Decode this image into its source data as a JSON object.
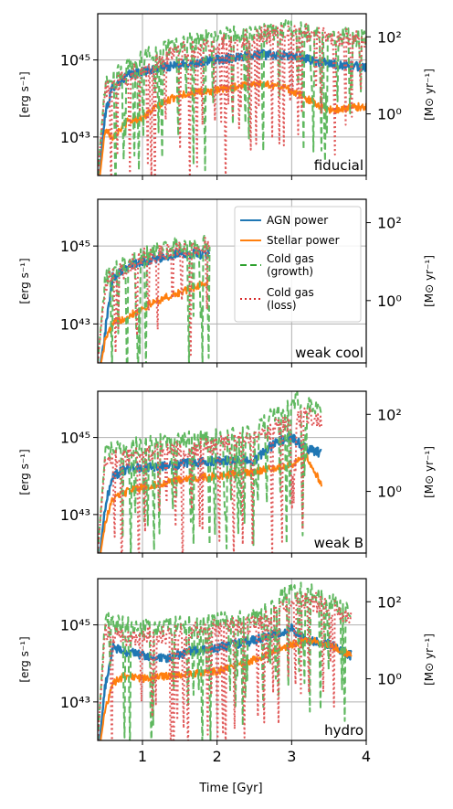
{
  "figure": {
    "xlabel": "Time [Gyr]",
    "x_ticks": [
      "1",
      "2",
      "3",
      "4"
    ],
    "left_ylabel": "[erg s⁻¹]",
    "right_ylabel": "[M⊙ yr⁻¹]",
    "left_ticks": [
      "10⁴⁵",
      "10⁴³"
    ],
    "right_ticks": [
      "10²",
      "10⁰"
    ]
  },
  "legend": {
    "panel": "weak cool",
    "entries": [
      {
        "label": "AGN power",
        "color": "#1f77b4",
        "style": "solid"
      },
      {
        "label": "Stellar power",
        "color": "#ff7f0e",
        "style": "solid"
      },
      {
        "label": "Cold gas\n(growth)",
        "color": "#2ca02c",
        "style": "dashed"
      },
      {
        "label": "Cold gas\n(loss)",
        "color": "#d62728",
        "style": "dotted"
      }
    ]
  },
  "colors": {
    "agn": "#1f77b4",
    "stellar": "#ff7f0e",
    "growth": "#5fb85f",
    "loss": "#e05858",
    "grid": "#b0b0b0"
  },
  "chart_data": [
    {
      "type": "line",
      "label": "fiducial",
      "t_end": 4.0,
      "x": [
        0.4,
        4.0
      ],
      "xlim": [
        0.4,
        4.0
      ],
      "left_ylim_log10": [
        42.0,
        46.2
      ],
      "right_ylim_log10": [
        -1.6,
        2.6
      ],
      "log_scale": true,
      "grid": true,
      "series": [
        {
          "name": "AGN power",
          "log10_values_anchors": [
            [
              0.4,
              41.5
            ],
            [
              0.5,
              43.6
            ],
            [
              0.6,
              44.3
            ],
            [
              0.8,
              44.6
            ],
            [
              1.0,
              44.7
            ],
            [
              1.3,
              44.8
            ],
            [
              1.6,
              44.9
            ],
            [
              2.0,
              45.0
            ],
            [
              2.5,
              45.15
            ],
            [
              3.0,
              45.1
            ],
            [
              3.5,
              44.9
            ],
            [
              4.0,
              44.8
            ]
          ]
        },
        {
          "name": "Stellar power",
          "log10_values_anchors": [
            [
              0.4,
              41.5
            ],
            [
              0.5,
              43.2
            ],
            [
              0.6,
              43.0
            ],
            [
              0.8,
              43.4
            ],
            [
              1.0,
              43.5
            ],
            [
              1.2,
              43.8
            ],
            [
              1.5,
              44.1
            ],
            [
              2.0,
              44.2
            ],
            [
              2.5,
              44.4
            ],
            [
              2.9,
              44.3
            ],
            [
              3.2,
              44.0
            ],
            [
              3.5,
              43.7
            ],
            [
              4.0,
              43.8
            ]
          ]
        },
        {
          "name": "Cold gas (growth)",
          "log10_values_anchors": [
            [
              0.4,
              -1.6
            ],
            [
              0.5,
              0.8
            ],
            [
              0.8,
              1.2
            ],
            [
              1.0,
              1.5
            ],
            [
              1.5,
              1.8
            ],
            [
              2.0,
              2.0
            ],
            [
              2.5,
              2.1
            ],
            [
              3.0,
              2.2
            ],
            [
              3.5,
              2.0
            ],
            [
              4.0,
              2.0
            ]
          ]
        },
        {
          "name": "Cold gas (loss)",
          "log10_values_anchors": [
            [
              0.4,
              -1.6
            ],
            [
              0.5,
              0.6
            ],
            [
              0.8,
              1.0
            ],
            [
              1.0,
              1.2
            ],
            [
              1.5,
              1.6
            ],
            [
              2.0,
              1.8
            ],
            [
              2.5,
              2.0
            ],
            [
              3.0,
              2.2
            ],
            [
              3.5,
              2.0
            ],
            [
              4.0,
              1.9
            ]
          ]
        }
      ]
    },
    {
      "type": "line",
      "label": "weak cool",
      "t_end": 1.9,
      "x": [
        0.4,
        1.9
      ],
      "xlim": [
        0.4,
        4.0
      ],
      "left_ylim_log10": [
        42.0,
        46.2
      ],
      "right_ylim_log10": [
        -1.6,
        2.6
      ],
      "log_scale": true,
      "grid": true,
      "series": [
        {
          "name": "AGN power",
          "log10_values_anchors": [
            [
              0.4,
              41.5
            ],
            [
              0.5,
              42.8
            ],
            [
              0.6,
              44.2
            ],
            [
              0.8,
              44.5
            ],
            [
              1.0,
              44.6
            ],
            [
              1.2,
              44.7
            ],
            [
              1.5,
              44.8
            ],
            [
              1.9,
              44.8
            ]
          ]
        },
        {
          "name": "Stellar power",
          "log10_values_anchors": [
            [
              0.4,
              41.5
            ],
            [
              0.5,
              42.6
            ],
            [
              0.6,
              43.0
            ],
            [
              0.8,
              43.2
            ],
            [
              1.0,
              43.4
            ],
            [
              1.2,
              43.6
            ],
            [
              1.5,
              43.8
            ],
            [
              1.9,
              44.1
            ]
          ]
        },
        {
          "name": "Cold gas (growth)",
          "log10_values_anchors": [
            [
              0.4,
              -1.6
            ],
            [
              0.5,
              0.6
            ],
            [
              0.8,
              1.0
            ],
            [
              1.0,
              1.2
            ],
            [
              1.5,
              1.4
            ],
            [
              1.9,
              1.5
            ]
          ]
        },
        {
          "name": "Cold gas (loss)",
          "log10_values_anchors": [
            [
              0.4,
              -1.6
            ],
            [
              0.5,
              0.4
            ],
            [
              0.8,
              0.9
            ],
            [
              1.0,
              1.1
            ],
            [
              1.5,
              1.3
            ],
            [
              1.9,
              1.4
            ]
          ]
        }
      ]
    },
    {
      "type": "line",
      "label": "weak B",
      "t_end": 3.4,
      "x": [
        0.4,
        3.4
      ],
      "xlim": [
        0.4,
        4.0
      ],
      "left_ylim_log10": [
        42.0,
        46.2
      ],
      "right_ylim_log10": [
        -1.6,
        2.6
      ],
      "log_scale": true,
      "grid": true,
      "series": [
        {
          "name": "AGN power",
          "log10_values_anchors": [
            [
              0.4,
              41.5
            ],
            [
              0.5,
              43.2
            ],
            [
              0.6,
              44.0
            ],
            [
              0.8,
              44.2
            ],
            [
              1.0,
              44.2
            ],
            [
              1.5,
              44.3
            ],
            [
              2.0,
              44.4
            ],
            [
              2.5,
              44.4
            ],
            [
              2.8,
              44.9
            ],
            [
              3.0,
              45.0
            ],
            [
              3.2,
              44.7
            ],
            [
              3.4,
              44.6
            ]
          ]
        },
        {
          "name": "Stellar power",
          "log10_values_anchors": [
            [
              0.4,
              41.5
            ],
            [
              0.5,
              42.8
            ],
            [
              0.6,
              43.4
            ],
            [
              0.8,
              43.6
            ],
            [
              1.0,
              43.7
            ],
            [
              1.5,
              43.9
            ],
            [
              2.0,
              44.0
            ],
            [
              2.5,
              44.1
            ],
            [
              3.0,
              44.3
            ],
            [
              3.2,
              44.5
            ],
            [
              3.4,
              43.8
            ]
          ]
        },
        {
          "name": "Cold gas (growth)",
          "log10_values_anchors": [
            [
              0.4,
              -1.6
            ],
            [
              0.5,
              1.0
            ],
            [
              0.8,
              1.1
            ],
            [
              1.0,
              1.2
            ],
            [
              1.5,
              1.3
            ],
            [
              2.0,
              1.4
            ],
            [
              2.5,
              1.5
            ],
            [
              3.0,
              2.4
            ],
            [
              3.2,
              2.3
            ],
            [
              3.4,
              2.0
            ]
          ]
        },
        {
          "name": "Cold gas (loss)",
          "log10_values_anchors": [
            [
              0.4,
              -1.6
            ],
            [
              0.5,
              0.8
            ],
            [
              0.8,
              0.9
            ],
            [
              1.0,
              1.0
            ],
            [
              1.5,
              1.1
            ],
            [
              2.0,
              1.2
            ],
            [
              2.5,
              1.4
            ],
            [
              3.0,
              1.8
            ],
            [
              3.2,
              2.0
            ],
            [
              3.4,
              1.8
            ]
          ]
        }
      ]
    },
    {
      "type": "line",
      "label": "hydro",
      "t_end": 3.8,
      "x": [
        0.4,
        3.8
      ],
      "xlim": [
        0.4,
        4.0
      ],
      "left_ylim_log10": [
        42.0,
        46.2
      ],
      "right_ylim_log10": [
        -1.6,
        2.6
      ],
      "log_scale": true,
      "grid": true,
      "series": [
        {
          "name": "AGN power",
          "log10_values_anchors": [
            [
              0.4,
              41.5
            ],
            [
              0.5,
              43.4
            ],
            [
              0.6,
              44.4
            ],
            [
              0.8,
              44.3
            ],
            [
              1.0,
              44.2
            ],
            [
              1.3,
              44.1
            ],
            [
              1.6,
              44.3
            ],
            [
              2.0,
              44.4
            ],
            [
              2.5,
              44.6
            ],
            [
              3.0,
              44.9
            ],
            [
              3.2,
              44.6
            ],
            [
              3.5,
              44.5
            ],
            [
              3.8,
              44.2
            ]
          ]
        },
        {
          "name": "Stellar power",
          "log10_values_anchors": [
            [
              0.4,
              41.5
            ],
            [
              0.5,
              42.8
            ],
            [
              0.6,
              43.5
            ],
            [
              0.8,
              43.7
            ],
            [
              1.0,
              43.6
            ],
            [
              1.5,
              43.7
            ],
            [
              2.0,
              43.8
            ],
            [
              2.5,
              44.1
            ],
            [
              3.0,
              44.5
            ],
            [
              3.3,
              44.6
            ],
            [
              3.6,
              44.4
            ],
            [
              3.8,
              44.2
            ]
          ]
        },
        {
          "name": "Cold gas (growth)",
          "log10_values_anchors": [
            [
              0.4,
              -1.6
            ],
            [
              0.5,
              1.5
            ],
            [
              0.8,
              1.4
            ],
            [
              1.0,
              1.3
            ],
            [
              1.5,
              1.4
            ],
            [
              2.0,
              1.5
            ],
            [
              2.5,
              1.6
            ],
            [
              3.0,
              2.3
            ],
            [
              3.3,
              2.2
            ],
            [
              3.6,
              2.0
            ],
            [
              3.8,
              1.8
            ]
          ]
        },
        {
          "name": "Cold gas (loss)",
          "log10_values_anchors": [
            [
              0.4,
              -1.6
            ],
            [
              0.5,
              1.2
            ],
            [
              0.8,
              1.1
            ],
            [
              1.0,
              1.1
            ],
            [
              1.5,
              1.2
            ],
            [
              2.0,
              1.3
            ],
            [
              2.5,
              1.4
            ],
            [
              3.0,
              2.0
            ],
            [
              3.3,
              2.0
            ],
            [
              3.6,
              1.8
            ],
            [
              3.8,
              1.5
            ]
          ]
        }
      ]
    }
  ]
}
